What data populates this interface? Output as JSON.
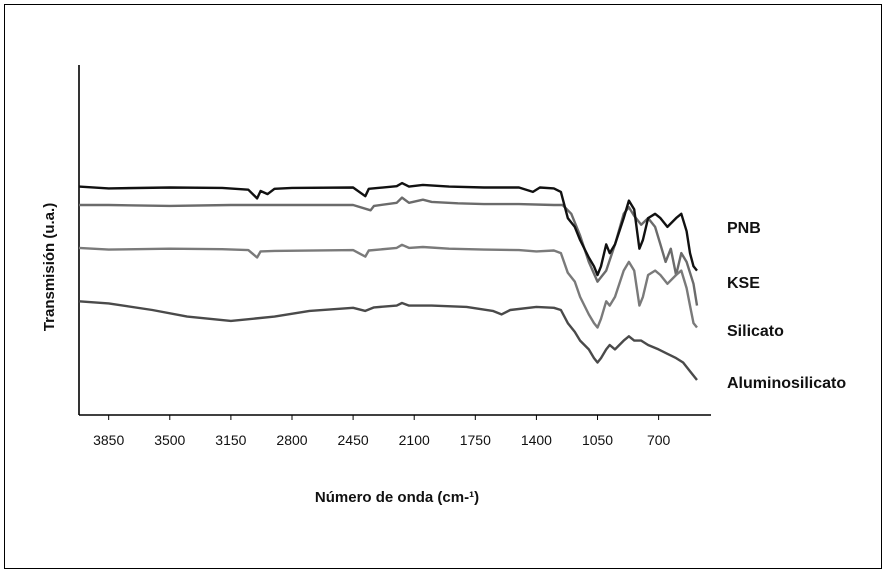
{
  "chart_data": {
    "type": "line",
    "xlabel": "Número de onda (cm-¹)",
    "ylabel": "Transmisión (u.a.)",
    "x_ticks": [
      3850,
      3500,
      3150,
      2800,
      2450,
      2100,
      1750,
      1400,
      1050,
      700
    ],
    "xlim": [
      4020,
      400
    ],
    "x_reversed": true,
    "y_units": "arbitrary (stacked, offset traces)",
    "grid": false,
    "legend": "labels at right end of each trace",
    "series": [
      {
        "name": "PNB",
        "color": "#6b6b6b",
        "points": [
          [
            4020,
            0.77
          ],
          [
            3850,
            0.77
          ],
          [
            3500,
            0.772
          ],
          [
            3150,
            0.77
          ],
          [
            2800,
            0.77
          ],
          [
            2450,
            0.77
          ],
          [
            2350,
            0.782
          ],
          [
            2330,
            0.772
          ],
          [
            2200,
            0.765
          ],
          [
            2170,
            0.753
          ],
          [
            2130,
            0.765
          ],
          [
            2050,
            0.758
          ],
          [
            2000,
            0.763
          ],
          [
            1850,
            0.766
          ],
          [
            1700,
            0.768
          ],
          [
            1500,
            0.768
          ],
          [
            1300,
            0.77
          ],
          [
            1250,
            0.77
          ],
          [
            1200,
            0.79
          ],
          [
            1150,
            0.84
          ],
          [
            1100,
            0.9
          ],
          [
            1050,
            0.945
          ],
          [
            1000,
            0.92
          ],
          [
            950,
            0.86
          ],
          [
            900,
            0.79
          ],
          [
            870,
            0.775
          ],
          [
            840,
            0.795
          ],
          [
            800,
            0.815
          ],
          [
            760,
            0.8
          ],
          [
            720,
            0.82
          ],
          [
            690,
            0.86
          ],
          [
            660,
            0.9
          ],
          [
            630,
            0.87
          ],
          [
            600,
            0.93
          ],
          [
            570,
            0.88
          ],
          [
            540,
            0.9
          ],
          [
            500,
            0.95
          ],
          [
            480,
            1.0
          ]
        ]
      },
      {
        "name": "KSE",
        "color": "#111111",
        "points": [
          [
            4020,
            0.728
          ],
          [
            3850,
            0.732
          ],
          [
            3500,
            0.73
          ],
          [
            3200,
            0.731
          ],
          [
            3050,
            0.735
          ],
          [
            3000,
            0.755
          ],
          [
            2980,
            0.738
          ],
          [
            2940,
            0.745
          ],
          [
            2900,
            0.733
          ],
          [
            2800,
            0.731
          ],
          [
            2450,
            0.73
          ],
          [
            2380,
            0.75
          ],
          [
            2360,
            0.733
          ],
          [
            2200,
            0.727
          ],
          [
            2170,
            0.72
          ],
          [
            2130,
            0.728
          ],
          [
            2050,
            0.724
          ],
          [
            1900,
            0.728
          ],
          [
            1700,
            0.73
          ],
          [
            1500,
            0.73
          ],
          [
            1420,
            0.74
          ],
          [
            1380,
            0.73
          ],
          [
            1300,
            0.732
          ],
          [
            1260,
            0.74
          ],
          [
            1220,
            0.8
          ],
          [
            1180,
            0.82
          ],
          [
            1150,
            0.85
          ],
          [
            1100,
            0.89
          ],
          [
            1070,
            0.91
          ],
          [
            1050,
            0.93
          ],
          [
            1030,
            0.91
          ],
          [
            1000,
            0.86
          ],
          [
            980,
            0.88
          ],
          [
            950,
            0.86
          ],
          [
            900,
            0.8
          ],
          [
            870,
            0.76
          ],
          [
            840,
            0.78
          ],
          [
            810,
            0.87
          ],
          [
            790,
            0.85
          ],
          [
            760,
            0.8
          ],
          [
            720,
            0.79
          ],
          [
            690,
            0.8
          ],
          [
            650,
            0.82
          ],
          [
            600,
            0.8
          ],
          [
            570,
            0.79
          ],
          [
            540,
            0.83
          ],
          [
            520,
            0.88
          ],
          [
            500,
            0.91
          ],
          [
            480,
            0.92
          ]
        ]
      },
      {
        "name": "Silicato",
        "color": "#7a7a7a",
        "points": [
          [
            4020,
            0.868
          ],
          [
            3850,
            0.872
          ],
          [
            3500,
            0.87
          ],
          [
            3200,
            0.871
          ],
          [
            3050,
            0.873
          ],
          [
            3000,
            0.89
          ],
          [
            2980,
            0.876
          ],
          [
            2900,
            0.875
          ],
          [
            2450,
            0.873
          ],
          [
            2380,
            0.888
          ],
          [
            2360,
            0.874
          ],
          [
            2200,
            0.868
          ],
          [
            2170,
            0.861
          ],
          [
            2130,
            0.868
          ],
          [
            2050,
            0.866
          ],
          [
            1900,
            0.87
          ],
          [
            1700,
            0.872
          ],
          [
            1500,
            0.873
          ],
          [
            1400,
            0.876
          ],
          [
            1300,
            0.874
          ],
          [
            1260,
            0.88
          ],
          [
            1220,
            0.925
          ],
          [
            1180,
            0.945
          ],
          [
            1150,
            0.98
          ],
          [
            1100,
            1.02
          ],
          [
            1070,
            1.04
          ],
          [
            1050,
            1.05
          ],
          [
            1030,
            1.03
          ],
          [
            1000,
            0.99
          ],
          [
            980,
            1.0
          ],
          [
            950,
            0.98
          ],
          [
            900,
            0.92
          ],
          [
            870,
            0.9
          ],
          [
            840,
            0.92
          ],
          [
            810,
            1.0
          ],
          [
            790,
            0.98
          ],
          [
            760,
            0.93
          ],
          [
            720,
            0.92
          ],
          [
            690,
            0.93
          ],
          [
            650,
            0.95
          ],
          [
            600,
            0.93
          ],
          [
            570,
            0.92
          ],
          [
            540,
            0.96
          ],
          [
            520,
            1.0
          ],
          [
            500,
            1.04
          ],
          [
            480,
            1.05
          ]
        ]
      },
      {
        "name": "Aluminosilicato",
        "color": "#4a4a4a",
        "points": [
          [
            4020,
            0.99
          ],
          [
            3850,
            0.995
          ],
          [
            3600,
            1.01
          ],
          [
            3400,
            1.025
          ],
          [
            3150,
            1.035
          ],
          [
            2900,
            1.025
          ],
          [
            2700,
            1.012
          ],
          [
            2450,
            1.005
          ],
          [
            2380,
            1.012
          ],
          [
            2330,
            1.004
          ],
          [
            2200,
            1.0
          ],
          [
            2170,
            0.994
          ],
          [
            2130,
            1.0
          ],
          [
            2000,
            1.0
          ],
          [
            1800,
            1.003
          ],
          [
            1650,
            1.012
          ],
          [
            1600,
            1.02
          ],
          [
            1550,
            1.01
          ],
          [
            1400,
            1.003
          ],
          [
            1300,
            1.005
          ],
          [
            1260,
            1.01
          ],
          [
            1220,
            1.04
          ],
          [
            1180,
            1.06
          ],
          [
            1150,
            1.08
          ],
          [
            1100,
            1.1
          ],
          [
            1070,
            1.12
          ],
          [
            1050,
            1.13
          ],
          [
            1030,
            1.12
          ],
          [
            1000,
            1.1
          ],
          [
            980,
            1.09
          ],
          [
            950,
            1.1
          ],
          [
            900,
            1.08
          ],
          [
            870,
            1.07
          ],
          [
            840,
            1.08
          ],
          [
            800,
            1.08
          ],
          [
            760,
            1.09
          ],
          [
            700,
            1.1
          ],
          [
            650,
            1.11
          ],
          [
            600,
            1.12
          ],
          [
            560,
            1.13
          ],
          [
            520,
            1.15
          ],
          [
            480,
            1.17
          ]
        ]
      }
    ]
  }
}
